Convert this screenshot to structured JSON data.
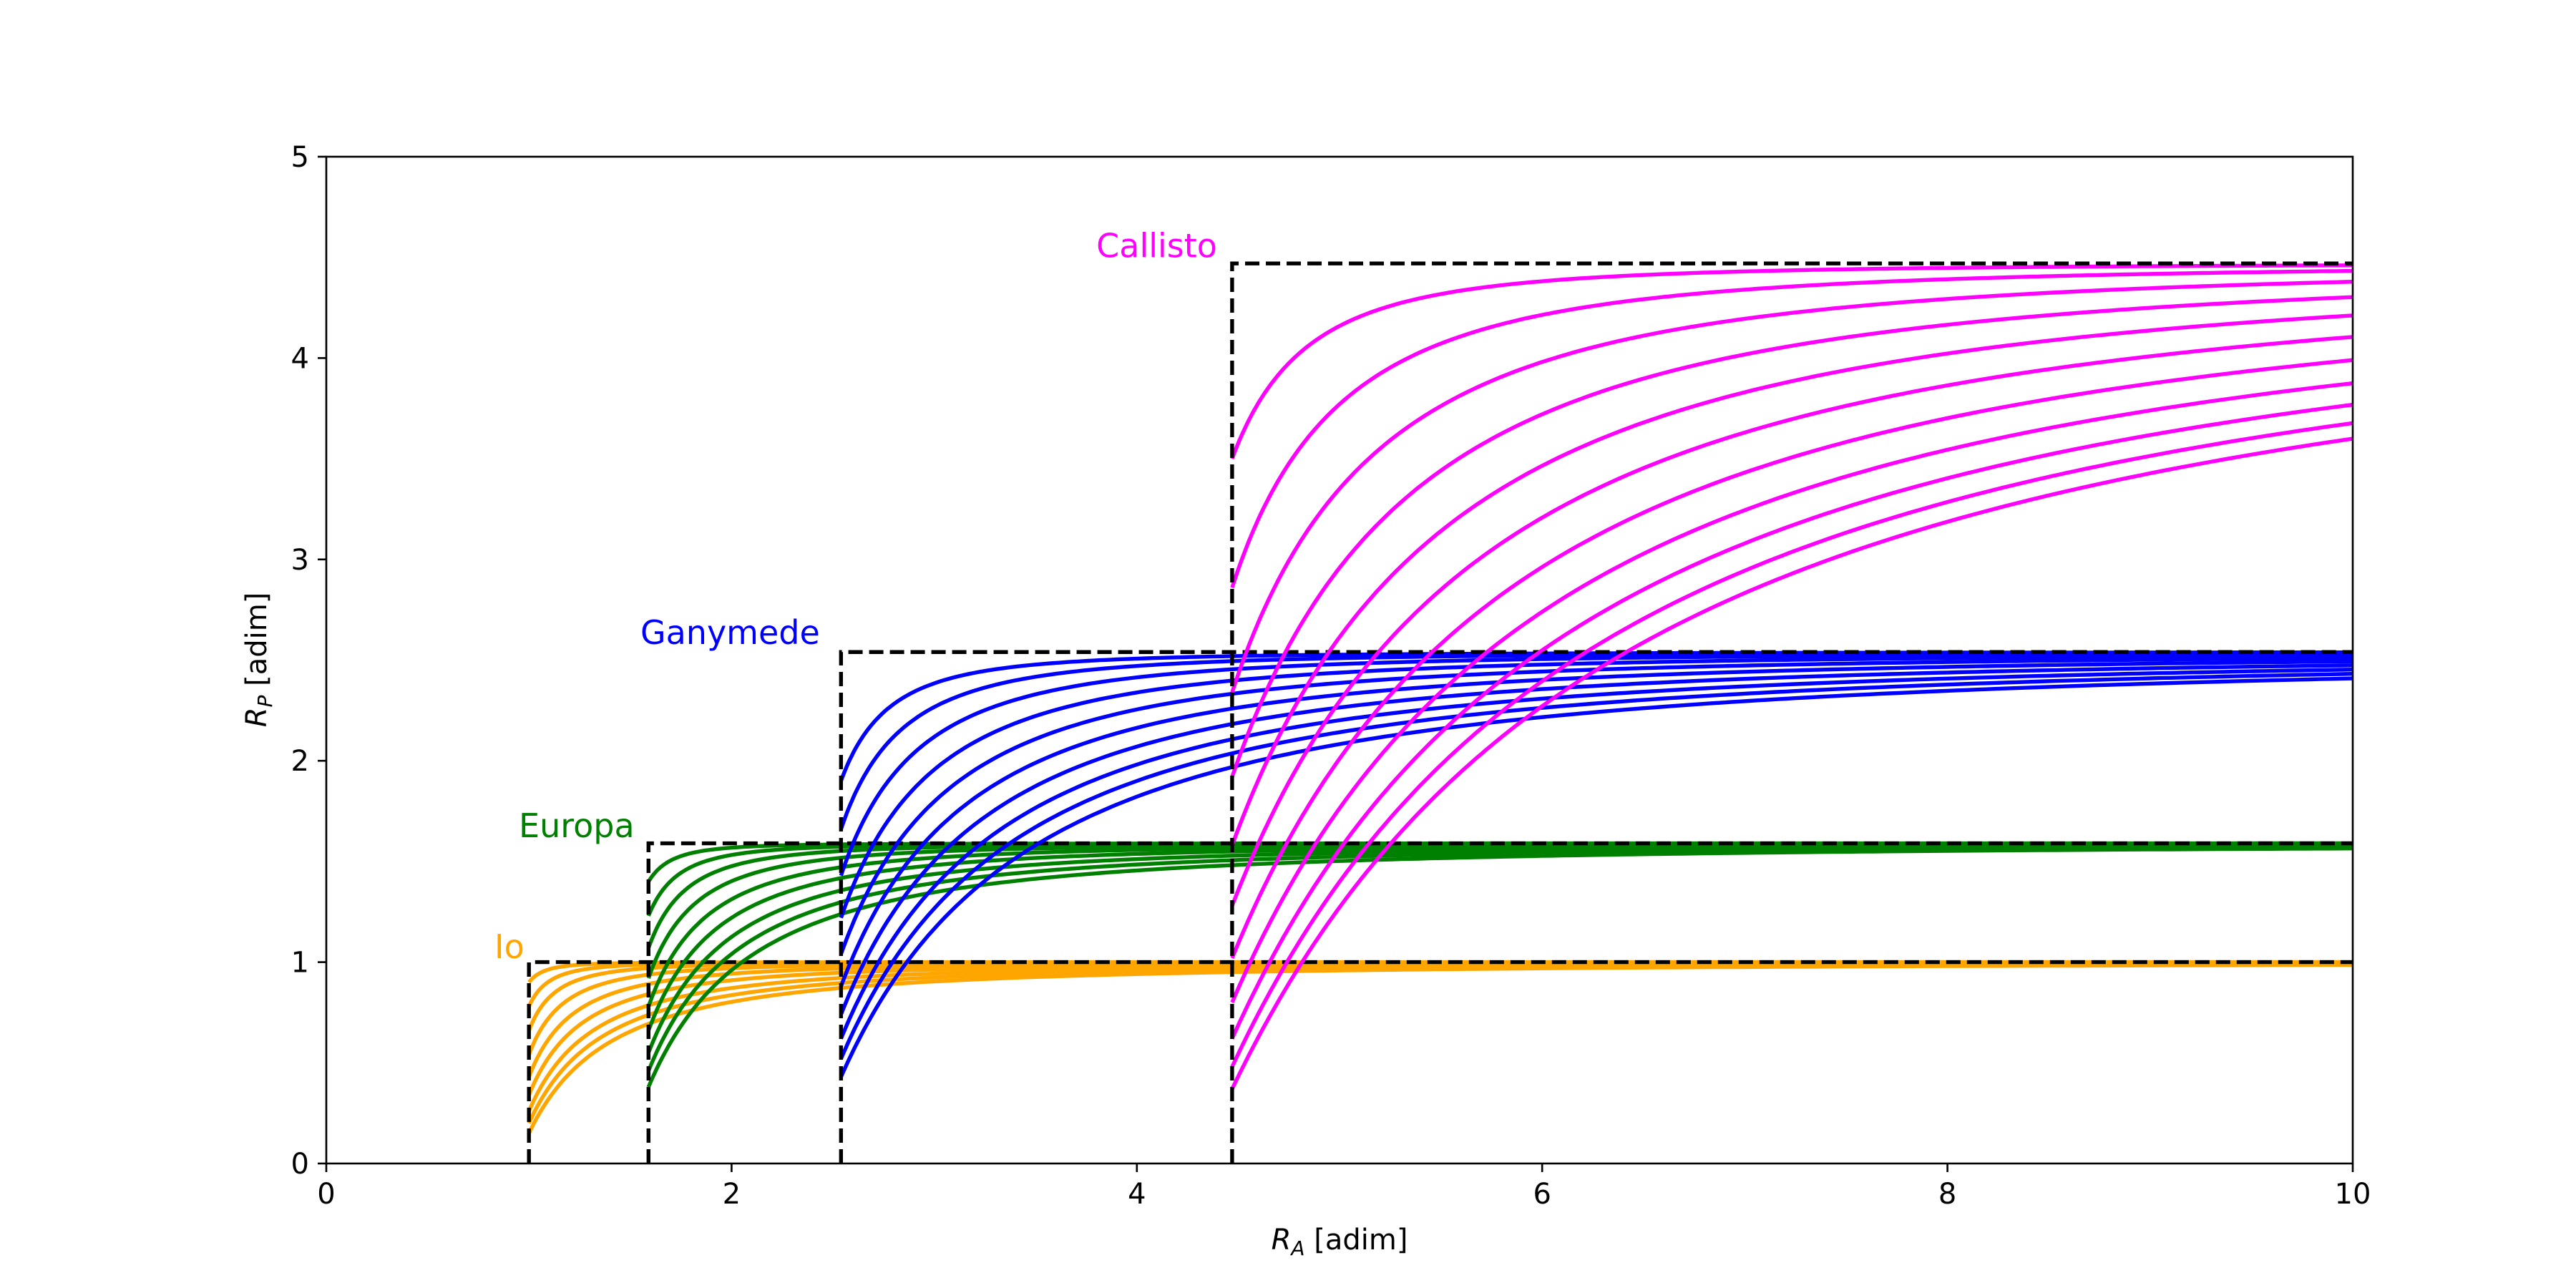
{
  "chart_data": {
    "type": "line",
    "xlabel": "R",
    "xlabel_sub": "A",
    "xlabel_unit": " [adim]",
    "ylabel": "R",
    "ylabel_sub": "P",
    "ylabel_unit": " [adim]",
    "xlim": [
      0,
      10
    ],
    "ylim": [
      0,
      5
    ],
    "xticks": [
      0,
      2,
      4,
      6,
      8,
      10
    ],
    "yticks": [
      0,
      1,
      2,
      3,
      4,
      5
    ],
    "grid": false,
    "legend": "none",
    "series": [
      {
        "name": "Io",
        "color": "#ffa500",
        "radius": 1.0,
        "curve_count": 9,
        "start_values": [
          0.15,
          0.2,
          0.26,
          0.34,
          0.43,
          0.54,
          0.66,
          0.78,
          0.9
        ],
        "label_x": 0.83,
        "label_y": 1.02
      },
      {
        "name": "Europa",
        "color": "#008000",
        "radius": 1.59,
        "curve_count": 9,
        "start_values": [
          0.38,
          0.46,
          0.55,
          0.66,
          0.78,
          0.92,
          1.07,
          1.23,
          1.4
        ],
        "label_x": 0.95,
        "label_y": 1.62
      },
      {
        "name": "Ganymede",
        "color": "#0000ff",
        "radius": 2.54,
        "curve_count": 10,
        "start_values": [
          0.43,
          0.52,
          0.62,
          0.74,
          0.88,
          1.04,
          1.22,
          1.43,
          1.66,
          1.9
        ],
        "label_x": 1.55,
        "label_y": 2.58
      },
      {
        "name": "Callisto",
        "color": "#ff00ff",
        "radius": 4.47,
        "curve_count": 11,
        "start_values": [
          0.37,
          0.48,
          0.62,
          0.8,
          1.02,
          1.28,
          1.58,
          1.92,
          2.34,
          2.86,
          3.5
        ],
        "label_x": 3.8,
        "label_y": 4.5
      }
    ]
  }
}
